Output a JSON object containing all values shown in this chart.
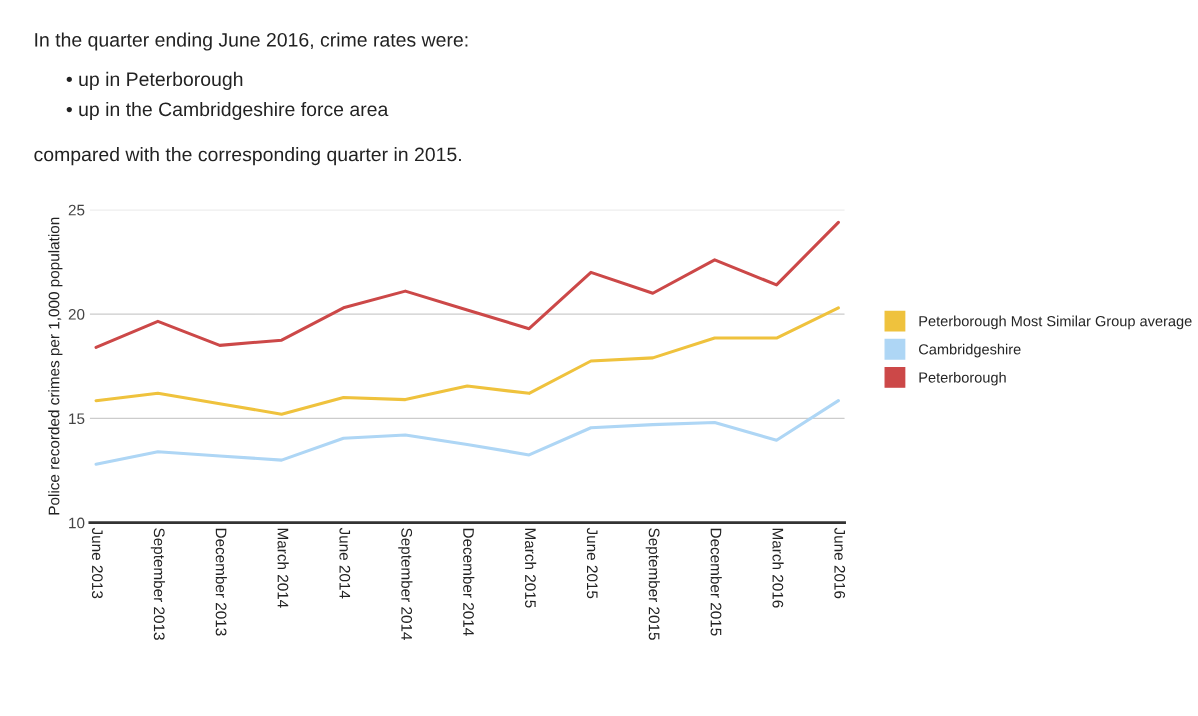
{
  "chart_data": {
    "type": "line",
    "title": "In the quarter ending June 2016, crime rates were:",
    "annotations": [
      "• up in Peterborough",
      "• up in the Cambridgeshire force area",
      "compared with the corresponding quarter in 2015."
    ],
    "ylabel": "Police recorded crimes per 1,000 population",
    "categories": [
      "June 2013",
      "September 2013",
      "December 2013",
      "March 2014",
      "June 2014",
      "September 2014",
      "December 2014",
      "March 2015",
      "June 2015",
      "September 2015",
      "December 2015",
      "March 2016",
      "June 2016"
    ],
    "series": [
      {
        "name": "Peterborough Most Similar Group average",
        "color": "#efc23d",
        "values": [
          15.85,
          16.2,
          15.7,
          15.2,
          16.0,
          15.9,
          16.55,
          16.2,
          17.75,
          17.9,
          18.85,
          18.85,
          20.3
        ]
      },
      {
        "name": "Cambridgeshire",
        "color": "#aed6f5",
        "values": [
          12.8,
          13.4,
          13.2,
          13.0,
          14.05,
          14.2,
          13.75,
          13.25,
          14.55,
          14.7,
          14.8,
          13.95,
          15.85
        ]
      },
      {
        "name": "Peterborough",
        "color": "#cc4848",
        "values": [
          18.4,
          19.65,
          18.5,
          18.75,
          20.3,
          21.1,
          20.2,
          19.3,
          22.0,
          21.0,
          22.6,
          21.4,
          24.4
        ]
      }
    ],
    "ylim": [
      10,
      25
    ],
    "yticks": [
      10,
      15,
      20,
      25
    ],
    "grid": "y",
    "legend": "right",
    "marker": "none",
    "line_style": "solid"
  }
}
